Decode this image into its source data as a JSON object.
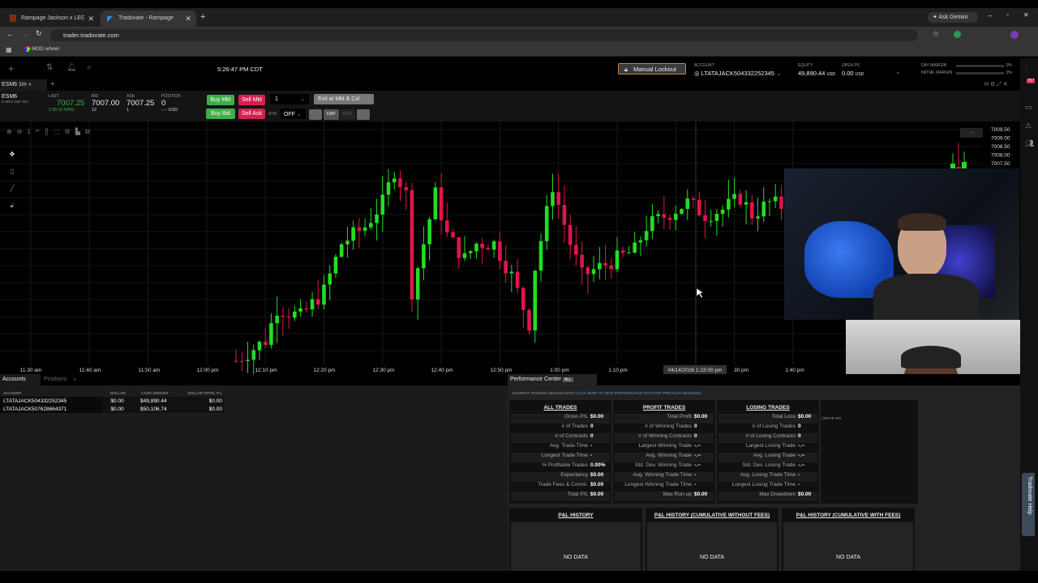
{
  "browser": {
    "tabs": [
      {
        "label": "Rampage Jackson x LEGENDS",
        "active": false
      },
      {
        "label": "Tradovate - Rampage",
        "active": true
      }
    ],
    "url": "trader.tradovate.com",
    "bookmark": "MOD wheel",
    "gemini": "Ask Gemini"
  },
  "header": {
    "clock": "5:26:47 PM CDT",
    "lockout": "Manual Lockout",
    "account_label": "ACCOUNT",
    "account": "LTATAJACK504332252345",
    "equity_label": "EQUITY",
    "equity": "49,890.44",
    "equity_unit": "USD",
    "openpl_label": "OPEN P/L",
    "openpl": "0.00",
    "openpl_unit": "USD",
    "day_margin_label": "DAY MARGIN",
    "day_margin": "0%",
    "initial_margin_label": "INITIAL MARGIN",
    "initial_margin": "0%",
    "notifications": "257"
  },
  "module_tab": "ESM6 1m",
  "quote": {
    "symbol": "ESM6",
    "desc": "E-MINI S&P 500",
    "last_label": "LAST",
    "last": "7007.25",
    "change": "2.50 (0.04%)",
    "bid_label": "BID",
    "bid": "7007.00",
    "bid_size": "12",
    "ask_label": "ASK",
    "ask": "7007.25",
    "ask_size": "1",
    "pos_label": "POSITION",
    "position": "0",
    "pos_unit": "-.-- USD",
    "buy_mkt": "Buy Mkt",
    "sell_mkt": "Sell Mkt",
    "buy_bid": "Buy Bid",
    "sell_ask": "Sell Ask",
    "qty": "1",
    "exit": "Exit at Mkt & Cxl",
    "atm_label": "ATM",
    "atm": "OFF",
    "day": "DAY",
    "gtc": "GTC"
  },
  "chart": {
    "price_ticks": [
      "7009.50",
      "7009.00",
      "7008.50",
      "7008.00",
      "7007.50"
    ],
    "time_ticks": [
      "11:30 am",
      "11:40 am",
      "11:50 am",
      "12:00 pm",
      "12:10 pm",
      "12:20 pm",
      "12:30 pm",
      "12:40 pm",
      "12:50 pm",
      "1:00 pm",
      "1:10 pm",
      "30 pm",
      "1:40 pm"
    ],
    "crosshair_label": "04/14/2026 1:23:00 pm",
    "up_color": "#22dd22",
    "down_color": "#e0154c",
    "path": [
      [
        "12:05",
        6995.9
      ],
      [
        "12:10",
        6997.1
      ],
      [
        "12:12",
        6999.0
      ],
      [
        "12:16",
        6998.5
      ],
      [
        "12:20",
        7000.0
      ],
      [
        "12:23",
        7002.8
      ],
      [
        "12:27",
        7003.8
      ],
      [
        "12:30",
        7005.2
      ],
      [
        "12:32",
        7007.1
      ],
      [
        "12:34",
        7005.7
      ],
      [
        "12:35",
        7000.0
      ],
      [
        "12:37",
        7002.8
      ],
      [
        "12:39",
        7005.7
      ],
      [
        "12:41",
        7003.3
      ],
      [
        "12:44",
        7001.9
      ],
      [
        "12:46",
        7002.8
      ],
      [
        "12:49",
        7002.8
      ],
      [
        "12:52",
        7000.9
      ],
      [
        "12:55",
        6998.1
      ],
      [
        "12:56",
        7001.4
      ],
      [
        "12:59",
        7006.2
      ],
      [
        "13:02",
        7002.8
      ],
      [
        "13:04",
        7000.9
      ],
      [
        "13:07",
        7001.4
      ],
      [
        "13:10",
        7001.9
      ],
      [
        "13:13",
        7002.4
      ],
      [
        "13:15",
        7003.8
      ],
      [
        "13:20",
        7004.8
      ],
      [
        "13:22",
        7005.2
      ],
      [
        "13:25",
        7004.5
      ],
      [
        "13:28",
        7004.8
      ],
      [
        "13:31",
        7005.5
      ],
      [
        "13:33",
        7004.5
      ],
      [
        "13:36",
        7005.2
      ],
      [
        "13:38",
        7005.0
      ]
    ]
  },
  "accounts": {
    "tabs": [
      "Accounts",
      "Positions"
    ],
    "columns": [
      "ACCOUNT",
      "DOLLAR",
      "CASH AMOUNT",
      "DOLLAR TOTAL P L"
    ],
    "rows": [
      [
        "LTATAJACK504332252345",
        "$0.00",
        "$49,890.44",
        "$0.00"
      ],
      [
        "LTATAJACK507628664371",
        "$0.00",
        "$50,106.74",
        "$0.00"
      ]
    ]
  },
  "perf": {
    "title": "Performance Center",
    "badge": "ALL",
    "session": "CURRENT TRADING SESSION DATA",
    "link": "CLICK HERE TO VIEW PERFORMANCE DATA FOR PREVIOUS SESSIONS",
    "extra": "(MOVE MO",
    "cards": [
      {
        "title": "ALL TRADES",
        "rows": [
          [
            "Gross P/L",
            "$0.00"
          ],
          [
            "# of Trades",
            "0"
          ],
          [
            "# of Contracts",
            "0"
          ],
          [
            "Avg. Trade Time",
            "-"
          ],
          [
            "Longest Trade Time",
            "-"
          ],
          [
            "% Profitable Trades",
            "0.00%"
          ],
          [
            "Expectancy",
            "$0.00"
          ],
          [
            "Trade Fees & Comm.",
            "$0.00"
          ],
          [
            "Total P/L",
            "$0.00"
          ]
        ]
      },
      {
        "title": "PROFIT TRADES",
        "rows": [
          [
            "Total Profit",
            "$0.00"
          ],
          [
            "# of Winning Trades",
            "0"
          ],
          [
            "# of Winning Contracts",
            "0"
          ],
          [
            "Largest Winning Trade",
            "-.--"
          ],
          [
            "Avg. Winning Trade",
            "-.--"
          ],
          [
            "Std. Dev. Winning Trade",
            "-.--"
          ],
          [
            "Avg. Winning Trade Time",
            "-"
          ],
          [
            "Longest Winning Trade Time",
            "-"
          ],
          [
            "Max Run-up",
            "$0.00"
          ]
        ]
      },
      {
        "title": "LOSING TRADES",
        "rows": [
          [
            "Total Loss",
            "$0.00"
          ],
          [
            "# of Losing Trades",
            "0"
          ],
          [
            "# of Losing Contracts",
            "0"
          ],
          [
            "Largest Losing Trade",
            "-.--"
          ],
          [
            "Avg. Losing Trade",
            "-.--"
          ],
          [
            "Std. Dev. Losing Trade",
            "-.--"
          ],
          [
            "Avg. Losing Trade Time",
            "-"
          ],
          [
            "Longest Losing Trade Time",
            "-"
          ],
          [
            "Max Drawdown",
            "$0.00"
          ]
        ]
      }
    ],
    "history": [
      {
        "title": "P&L HISTORY",
        "body": "NO DATA"
      },
      {
        "title": "P&L HISTORY (CUMULATIVE WITHOUT FEES)",
        "body": "NO DATA"
      },
      {
        "title": "P&L HISTORY (CUMULATIVE WITH FEES)",
        "body": "NO DATA"
      }
    ]
  },
  "help_tab": "Tradovate Help"
}
